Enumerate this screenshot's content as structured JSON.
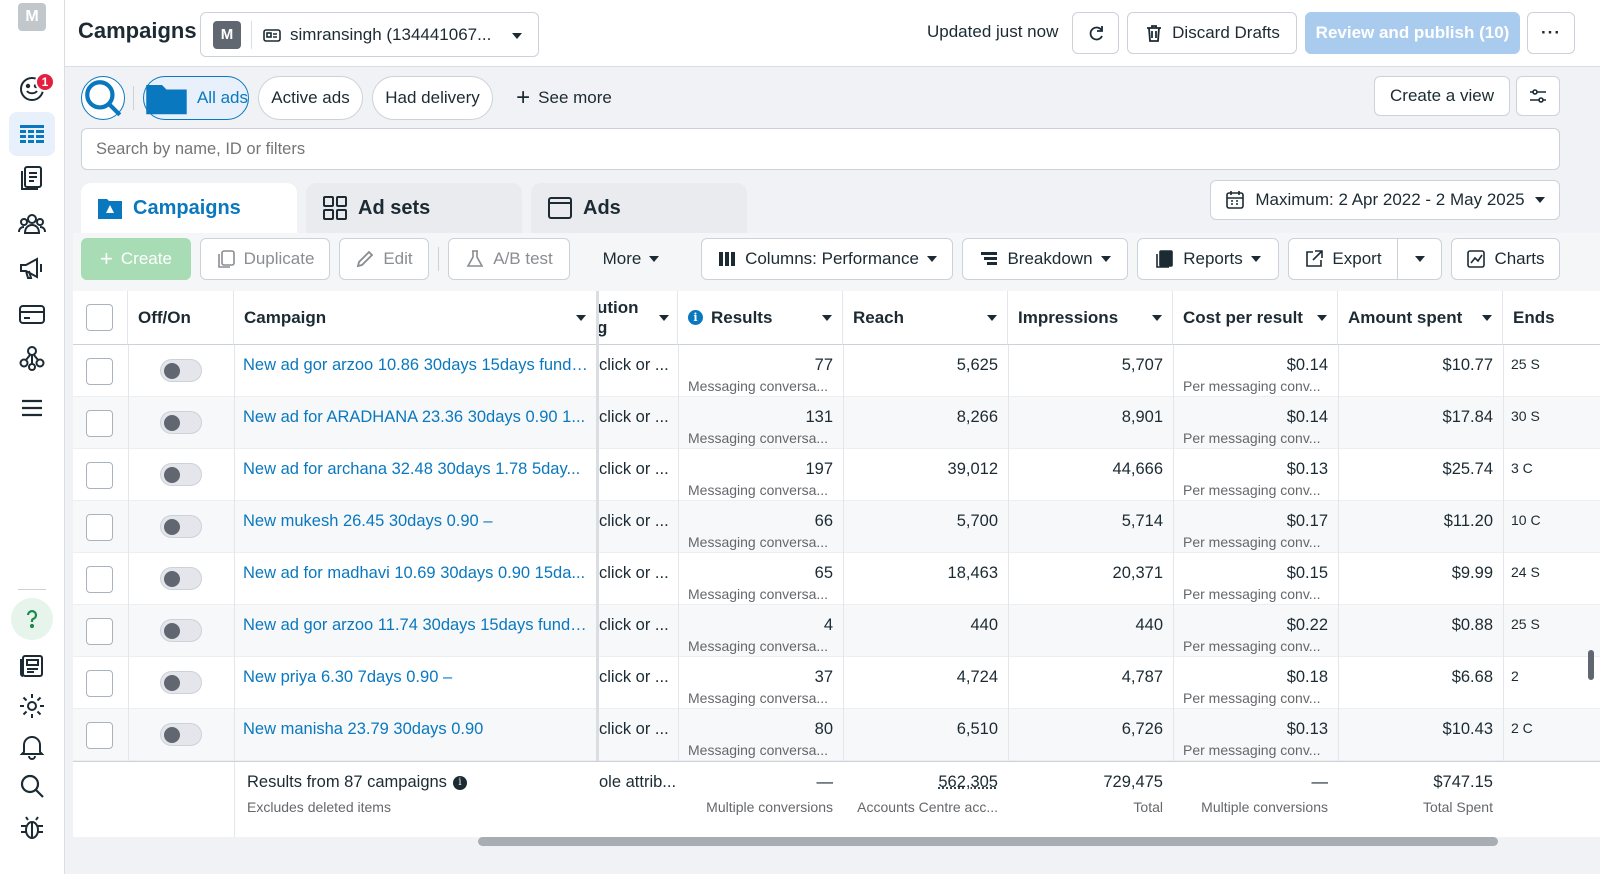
{
  "app": {
    "logo_letter": "M",
    "notification_count": "1",
    "page_title": "Campaigns",
    "account_avatar_letter": "M",
    "account_name": "simransingh (134441067...",
    "updated_status": "Updated just now",
    "discard_label": "Discard Drafts",
    "review_label": "Review and publish (10)",
    "more_label": "···"
  },
  "filters": {
    "all_ads": "All ads",
    "active_ads": "Active ads",
    "had_delivery": "Had delivery",
    "see_more": "See more",
    "create_view": "Create a view",
    "search_placeholder": "Search by name, ID or filters"
  },
  "tabs": [
    {
      "label": "Campaigns",
      "icon": "campaigns-folder-icon"
    },
    {
      "label": "Ad sets",
      "icon": "ad-sets-grid-icon"
    },
    {
      "label": "Ads",
      "icon": "ads-window-icon"
    }
  ],
  "date_range": "Maximum: 2 Apr 2022 - 2 May 2025",
  "toolbar": {
    "create": "Create",
    "duplicate": "Duplicate",
    "edit": "Edit",
    "ab_test": "A/B test",
    "more": "More",
    "columns": "Columns: Performance",
    "breakdown": "Breakdown",
    "reports": "Reports",
    "export": "Export",
    "charts": "Charts"
  },
  "columns": {
    "off_on": "Off/On",
    "campaign": "Campaign",
    "attribution_line1": "ution",
    "attribution_line2": "g",
    "results": "Results",
    "reach": "Reach",
    "impressions": "Impressions",
    "cost_per_result": "Cost per result",
    "amount_spent": "Amount spent",
    "ends": "Ends"
  },
  "rows": [
    {
      "name": "New ad gor arzoo 10.86 30days 15days fund ...",
      "attr": "click or ...",
      "results": "77",
      "results_sub": "Messaging conversa...",
      "reach": "5,625",
      "impressions": "5,707",
      "cpr": "$0.14",
      "cpr_sub": "Per messaging conv...",
      "spent": "$10.77",
      "ends": "25 S"
    },
    {
      "name": "New ad for ARADHANA 23.36 30days 0.90 1...",
      "attr": "click or ...",
      "results": "131",
      "results_sub": "Messaging conversa...",
      "reach": "8,266",
      "impressions": "8,901",
      "cpr": "$0.14",
      "cpr_sub": "Per messaging conv...",
      "spent": "$17.84",
      "ends": "30 S"
    },
    {
      "name": "New ad for archana 32.48 30days 1.78 5day...",
      "attr": "click or ...",
      "results": "197",
      "results_sub": "Messaging conversa...",
      "reach": "39,012",
      "impressions": "44,666",
      "cpr": "$0.13",
      "cpr_sub": "Per messaging conv...",
      "spent": "$25.74",
      "ends": "3 C"
    },
    {
      "name": "New mukesh 26.45 30days 0.90 –",
      "attr": "click or ...",
      "results": "66",
      "results_sub": "Messaging conversa...",
      "reach": "5,700",
      "impressions": "5,714",
      "cpr": "$0.17",
      "cpr_sub": "Per messaging conv...",
      "spent": "$11.20",
      "ends": "10 C"
    },
    {
      "name": "New ad for madhavi 10.69 30days 0.90 15da...",
      "attr": "click or ...",
      "results": "65",
      "results_sub": "Messaging conversa...",
      "reach": "18,463",
      "impressions": "20,371",
      "cpr": "$0.15",
      "cpr_sub": "Per messaging conv...",
      "spent": "$9.99",
      "ends": "24 S"
    },
    {
      "name": "New ad gor arzoo 11.74 30days 15days fund ...",
      "attr": "click or ...",
      "results": "4",
      "results_sub": "Messaging conversa...",
      "reach": "440",
      "impressions": "440",
      "cpr": "$0.22",
      "cpr_sub": "Per messaging conv...",
      "spent": "$0.88",
      "ends": "25 S"
    },
    {
      "name": "New priya 6.30 7days 0.90 –",
      "attr": "click or ...",
      "results": "37",
      "results_sub": "Messaging conversa...",
      "reach": "4,724",
      "impressions": "4,787",
      "cpr": "$0.18",
      "cpr_sub": "Per messaging conv...",
      "spent": "$6.68",
      "ends": "2"
    },
    {
      "name": "New manisha 23.79 30days 0.90",
      "attr": "click or ...",
      "results": "80",
      "results_sub": "Messaging conversa...",
      "reach": "6,510",
      "impressions": "6,726",
      "cpr": "$0.13",
      "cpr_sub": "Per messaging conv...",
      "spent": "$10.43",
      "ends": "2 C"
    }
  ],
  "footer": {
    "title": "Results from 87 campaigns",
    "subtitle": "Excludes deleted items",
    "attr": "ole attrib...",
    "results": "—",
    "results_sub": "Multiple conversions",
    "reach": "562,305",
    "reach_sub": "Accounts Centre acc...",
    "impressions": "729,475",
    "impressions_sub": "Total",
    "cpr": "—",
    "cpr_sub": "Multiple conversions",
    "spent": "$747.15",
    "spent_sub": "Total Spent"
  },
  "colors": {
    "accent": "#0a78be",
    "notification": "#e41e3f",
    "create_button": "#a7dcb5"
  }
}
